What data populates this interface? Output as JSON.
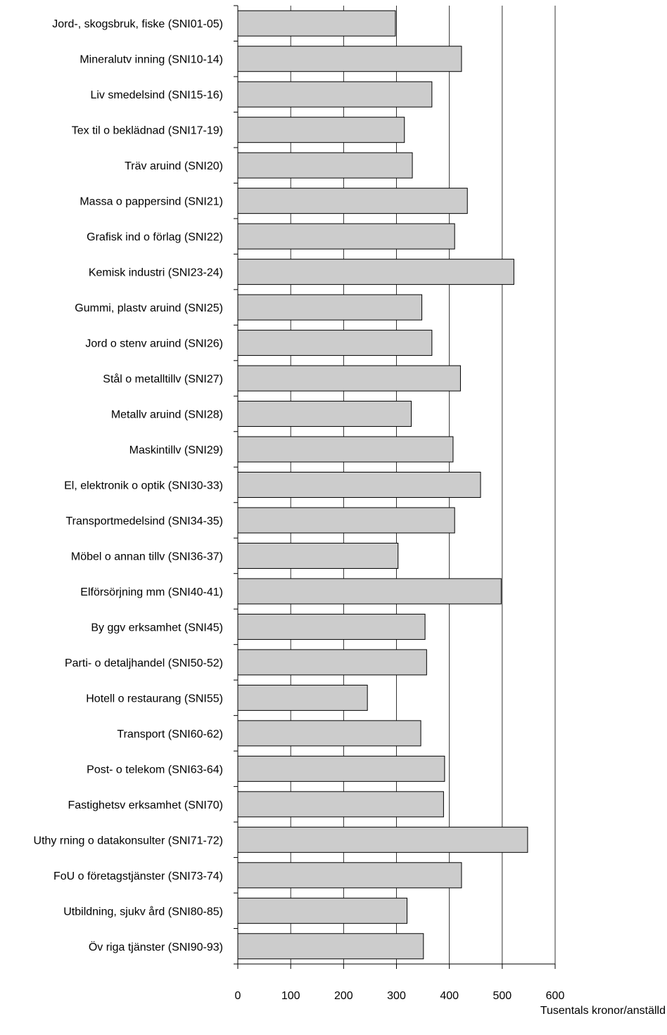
{
  "chart_data": {
    "type": "bar",
    "orientation": "horizontal",
    "categories": [
      "Jord-, skogsbruk, fiske (SNI01-05)",
      "Mineralutv inning (SNI10-14)",
      "Liv smedelsind (SNI15-16)",
      "Tex til o beklädnad (SNI17-19)",
      "Träv aruind (SNI20)",
      "Massa o pappersind (SNI21)",
      "Grafisk ind o förlag (SNI22)",
      "Kemisk industri (SNI23-24)",
      "Gummi, plastv aruind (SNI25)",
      "Jord o stenv aruind (SNI26)",
      "Stål o metalltillv (SNI27)",
      "Metallv aruind (SNI28)",
      "Maskintillv (SNI29)",
      "El, elektronik o optik (SNI30-33)",
      "Transportmedelsind (SNI34-35)",
      "Möbel o annan tillv (SNI36-37)",
      "Elförsörjning mm (SNI40-41)",
      "By ggv erksamhet (SNI45)",
      "Parti- o detaljhandel (SNI50-52)",
      "Hotell o restaurang (SNI55)",
      "Transport (SNI60-62)",
      "Post- o telekom (SNI63-64)",
      "Fastighetsv erksamhet (SNI70)",
      "Uthy rning o datakonsulter (SNI71-72)",
      "FoU o företagstjänster (SNI73-74)",
      "Utbildning, sjukv ård (SNI80-85)",
      "Öv riga tjänster (SNI90-93)"
    ],
    "values": [
      298,
      423,
      367,
      315,
      330,
      434,
      410,
      522,
      348,
      367,
      421,
      328,
      407,
      459,
      410,
      303,
      498,
      354,
      357,
      245,
      346,
      391,
      389,
      548,
      423,
      320,
      351
    ],
    "xlabel": "Tusentals kronor/anställd",
    "xlim": [
      0,
      600
    ],
    "xticks": [
      "0",
      "100",
      "200",
      "300",
      "400",
      "500",
      "600"
    ],
    "grid": "vertical",
    "bar_color": "#cccccc",
    "bar_stroke": "#000000",
    "gridline_color": "#000000"
  }
}
